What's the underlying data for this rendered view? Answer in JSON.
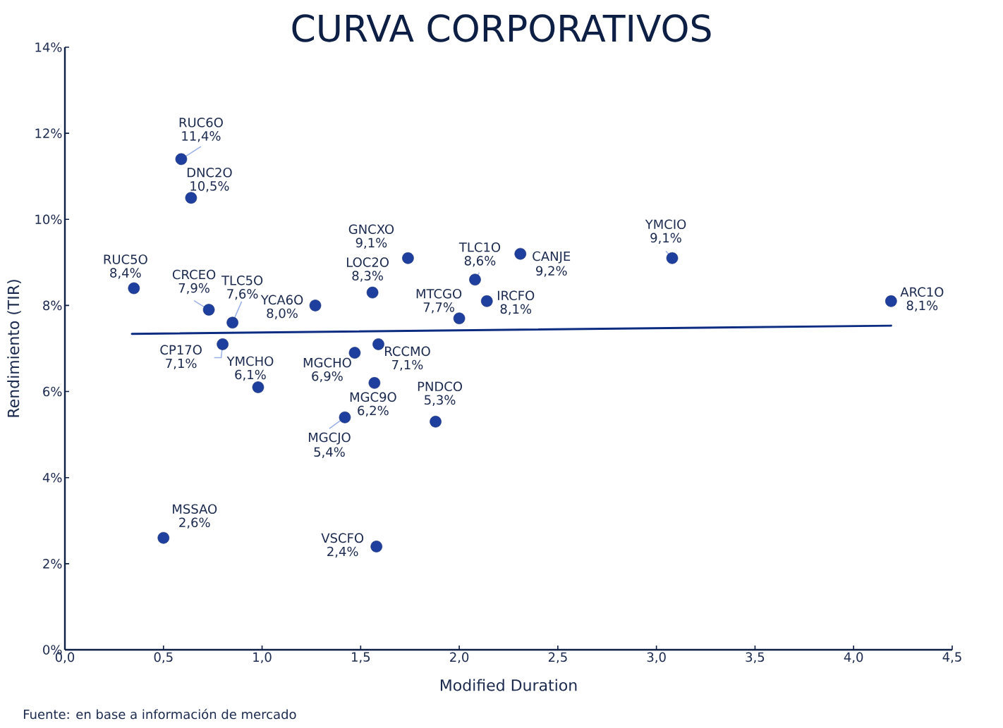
{
  "chart_data": {
    "type": "scatter",
    "title": "CURVA CORPORATIVOS",
    "xlabel": "Modified Duration",
    "ylabel": "Rendimiento (TIR)",
    "annotations": [
      {
        "text": "RUC6O",
        "x": 0.59,
        "y": 11.4
      },
      {
        "text": "DNC2O",
        "x": 0.64,
        "y": 10.5
      },
      {
        "text": "RUC5O",
        "x": 0.35,
        "y": 8.4
      },
      {
        "text": "CRCEO",
        "x": 0.73,
        "y": 7.9
      },
      {
        "text": "TLC5O",
        "x": 0.85,
        "y": 7.6
      },
      {
        "text": "YCA6O",
        "x": 1.27,
        "y": 8.0
      },
      {
        "text": "CP17O",
        "x": 0.8,
        "y": 7.1
      },
      {
        "text": "YMCHO",
        "x": 0.98,
        "y": 6.1
      },
      {
        "text": "MSSAO",
        "x": 0.5,
        "y": 2.6
      },
      {
        "text": "GNCXO",
        "x": 1.74,
        "y": 9.1
      },
      {
        "text": "LOC2O",
        "x": 1.56,
        "y": 8.3
      },
      {
        "text": "TLC1O",
        "x": 2.08,
        "y": 8.6
      },
      {
        "text": "CANJE",
        "x": 2.31,
        "y": 9.2
      },
      {
        "text": "MTCGO",
        "x": 2.0,
        "y": 7.7
      },
      {
        "text": "IRCFO",
        "x": 2.14,
        "y": 8.1
      },
      {
        "text": "RCCMO",
        "x": 1.59,
        "y": 7.1
      },
      {
        "text": "MGCHO",
        "x": 1.47,
        "y": 6.9
      },
      {
        "text": "MGC9O",
        "x": 1.57,
        "y": 6.2
      },
      {
        "text": "MGCJO",
        "x": 1.42,
        "y": 5.4
      },
      {
        "text": "PNDCO",
        "x": 1.88,
        "y": 5.3
      },
      {
        "text": "VSCFO",
        "x": 1.58,
        "y": 2.4
      },
      {
        "text": "YMCIO",
        "x": 3.08,
        "y": 9.1
      },
      {
        "text": "ARC1O",
        "x": 4.19,
        "y": 8.1
      },
      "Fuente: en base a información de mercado"
    ],
    "xlim": [
      0,
      4.5
    ],
    "xticks": [
      {
        "value": 0,
        "label": "0,0"
      },
      {
        "value": 0.5,
        "label": "0,5"
      },
      {
        "value": 1,
        "label": "1,0"
      },
      {
        "value": 1.5,
        "label": "1,5"
      },
      {
        "value": 2,
        "label": "2,0"
      },
      {
        "value": 2.5,
        "label": "2,5"
      },
      {
        "value": 3,
        "label": "3,0"
      },
      {
        "value": 3.5,
        "label": "3,5"
      },
      {
        "value": 4,
        "label": "4,0"
      },
      {
        "value": 4.5,
        "label": "4,5"
      }
    ],
    "ylim": [
      0,
      14
    ],
    "yticks": [
      {
        "value": 0,
        "label": "0%"
      },
      {
        "value": 2,
        "label": "2%"
      },
      {
        "value": 4,
        "label": "4%"
      },
      {
        "value": 6,
        "label": "6%"
      },
      {
        "value": 8,
        "label": "8%"
      },
      {
        "value": 10,
        "label": "10%"
      },
      {
        "value": 12,
        "label": "12%"
      },
      {
        "value": 14,
        "label": "14%"
      }
    ],
    "series": [
      {
        "color": "#1e3f9e",
        "marker": "circle",
        "x": [
          0.59,
          0.64,
          0.35,
          0.73,
          0.85,
          1.27,
          0.8,
          0.98,
          0.5,
          1.74,
          1.56,
          2.08,
          2.31,
          2.0,
          2.14,
          1.59,
          1.47,
          1.57,
          1.42,
          1.88,
          1.58,
          3.08,
          4.19
        ],
        "values": [
          11.4,
          10.5,
          8.4,
          7.9,
          7.6,
          8.0,
          7.1,
          6.1,
          2.6,
          9.1,
          8.3,
          8.6,
          9.2,
          7.7,
          8.1,
          7.1,
          6.9,
          6.2,
          5.4,
          5.3,
          2.4,
          9.1,
          8.1
        ],
        "value_labels": [
          "11,4%",
          "10,5%",
          "8,4%",
          "7,9%",
          "7,6%",
          "8,0%",
          "7,1%",
          "6,1%",
          "2,6%",
          "9,1%",
          "8,3%",
          "8,6%",
          "9,2%",
          "7,7%",
          "8,1%",
          "7,1%",
          "6,9%",
          "6,2%",
          "5,4%",
          "5,3%",
          "2,4%",
          "9,1%",
          "8,1%"
        ]
      },
      {
        "type": "line",
        "color": "#0c2c82",
        "line_style": "solid",
        "x": [
          0.34,
          4.19
        ],
        "values": [
          7.34,
          7.53
        ]
      }
    ]
  }
}
